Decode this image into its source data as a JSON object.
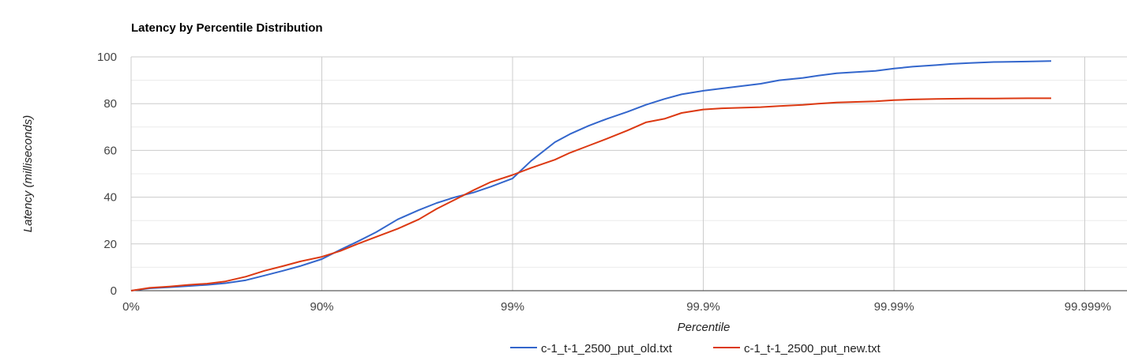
{
  "chart_data": {
    "type": "line",
    "title": "Latency by Percentile Distribution",
    "xlabel": "Percentile",
    "ylabel": "Latency (milliseconds)",
    "x_scale": "inverse-log (nines)",
    "x_ticks": [
      "0%",
      "90%",
      "99%",
      "99.9%",
      "99.99%",
      "99.999%"
    ],
    "y_ticks": [
      "0",
      "20",
      "40",
      "60",
      "80",
      "100"
    ],
    "ylim": [
      0,
      100
    ],
    "grid": true,
    "legend_position": "bottom",
    "series": [
      {
        "name": "c-1_t-1_2500_put_old.txt",
        "color": "#3366cc",
        "points": [
          [
            "0%",
            0
          ],
          [
            "20%",
            1.0
          ],
          [
            "37%",
            1.5
          ],
          [
            "50%",
            2.0
          ],
          [
            "60%",
            2.5
          ],
          [
            "68%",
            3.2
          ],
          [
            "75%",
            4.5
          ],
          [
            "80%",
            6.5
          ],
          [
            "84%",
            8.5
          ],
          [
            "87%",
            10.5
          ],
          [
            "90%",
            13.5
          ],
          [
            "92%",
            17.5
          ],
          [
            "93.5%",
            21.0
          ],
          [
            "94.8%",
            25.0
          ],
          [
            "96%",
            30.5
          ],
          [
            "96.9%",
            34.5
          ],
          [
            "97.5%",
            37.5
          ],
          [
            "98%",
            40.0
          ],
          [
            "98.4%",
            42.0
          ],
          [
            "98.7%",
            44.5
          ],
          [
            "99%",
            48.0
          ],
          [
            "99.2%",
            55.5
          ],
          [
            "99.4%",
            63.5
          ],
          [
            "99.5%",
            67.0
          ],
          [
            "99.6%",
            70.5
          ],
          [
            "99.68%",
            73.5
          ],
          [
            "99.75%",
            76.5
          ],
          [
            "99.8%",
            79.5
          ],
          [
            "99.84%",
            82.0
          ],
          [
            "99.87%",
            84.0
          ],
          [
            "99.9%",
            85.5
          ],
          [
            "99.92%",
            86.5
          ],
          [
            "99.95%",
            88.5
          ],
          [
            "99.96%",
            90.0
          ],
          [
            "99.97%",
            91.0
          ],
          [
            "99.975%",
            92.0
          ],
          [
            "99.98%",
            93.0
          ],
          [
            "99.9875%",
            94.0
          ],
          [
            "99.99%",
            95.0
          ],
          [
            "99.992%",
            95.8
          ],
          [
            "99.994%",
            96.5
          ],
          [
            "99.995%",
            97.0
          ],
          [
            "99.996%",
            97.4
          ],
          [
            "99.997%",
            97.8
          ],
          [
            "99.998%",
            98.0
          ],
          [
            "99.9985%",
            98.2
          ]
        ]
      },
      {
        "name": "c-1_t-1_2500_put_new.txt",
        "color": "#dc3912",
        "points": [
          [
            "0%",
            0
          ],
          [
            "20%",
            1.2
          ],
          [
            "37%",
            1.8
          ],
          [
            "50%",
            2.5
          ],
          [
            "60%",
            3.0
          ],
          [
            "68%",
            4.0
          ],
          [
            "75%",
            6.0
          ],
          [
            "80%",
            8.5
          ],
          [
            "84%",
            10.5
          ],
          [
            "87%",
            12.5
          ],
          [
            "90%",
            14.5
          ],
          [
            "92%",
            17.0
          ],
          [
            "93.5%",
            20.0
          ],
          [
            "94.8%",
            23.0
          ],
          [
            "96%",
            26.5
          ],
          [
            "96.9%",
            30.5
          ],
          [
            "97.5%",
            35.0
          ],
          [
            "98%",
            39.0
          ],
          [
            "98.4%",
            43.0
          ],
          [
            "98.7%",
            46.5
          ],
          [
            "99%",
            49.5
          ],
          [
            "99.2%",
            52.5
          ],
          [
            "99.4%",
            56.0
          ],
          [
            "99.5%",
            59.0
          ],
          [
            "99.6%",
            62.0
          ],
          [
            "99.68%",
            65.0
          ],
          [
            "99.75%",
            68.5
          ],
          [
            "99.8%",
            72.0
          ],
          [
            "99.84%",
            73.5
          ],
          [
            "99.87%",
            76.0
          ],
          [
            "99.9%",
            77.5
          ],
          [
            "99.92%",
            78.0
          ],
          [
            "99.95%",
            78.5
          ],
          [
            "99.96%",
            79.0
          ],
          [
            "99.97%",
            79.5
          ],
          [
            "99.975%",
            80.0
          ],
          [
            "99.98%",
            80.5
          ],
          [
            "99.9875%",
            81.0
          ],
          [
            "99.99%",
            81.5
          ],
          [
            "99.992%",
            81.8
          ],
          [
            "99.994%",
            82.0
          ],
          [
            "99.995%",
            82.1
          ],
          [
            "99.996%",
            82.2
          ],
          [
            "99.997%",
            82.2
          ],
          [
            "99.998%",
            82.3
          ],
          [
            "99.9985%",
            82.3
          ]
        ]
      }
    ]
  }
}
